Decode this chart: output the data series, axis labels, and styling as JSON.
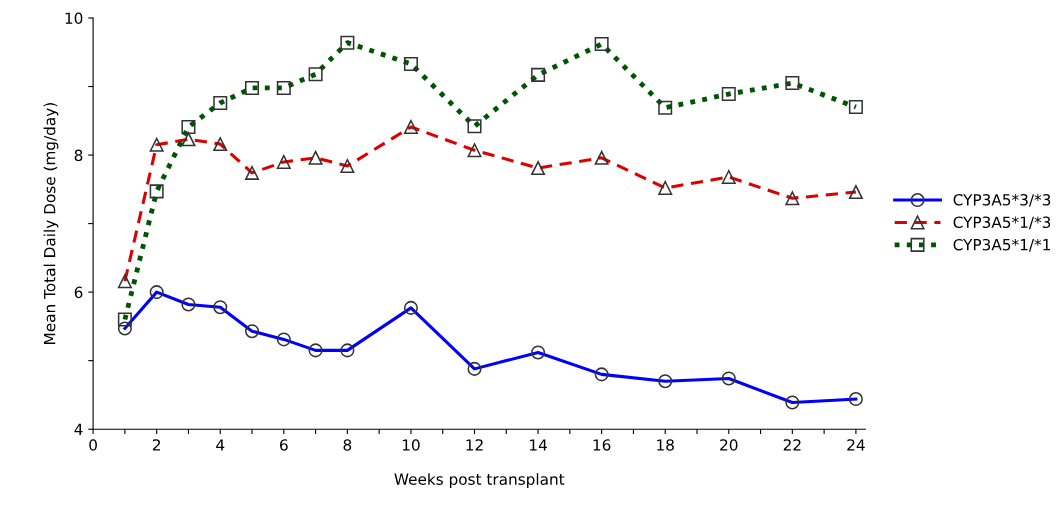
{
  "chart_data": {
    "type": "line",
    "xlabel": "Weeks post transplant",
    "ylabel": "Mean Total Daily Dose (mg/day)",
    "x": [
      1,
      2,
      3,
      4,
      5,
      6,
      7,
      8,
      10,
      12,
      14,
      16,
      18,
      20,
      22,
      24
    ],
    "series": [
      {
        "name": "CYP3A5*3/*3",
        "color": "#0000ff",
        "marker": "circle",
        "line_style": "solid",
        "values": [
          5.47,
          6.0,
          5.82,
          5.78,
          5.43,
          5.31,
          5.15,
          5.15,
          5.77,
          4.88,
          5.12,
          4.8,
          4.7,
          4.74,
          4.39,
          4.44
        ]
      },
      {
        "name": "CYP3A5*1/*3",
        "color": "#dd0000",
        "marker": "triangle",
        "line_style": "dashed",
        "values": [
          6.16,
          8.15,
          8.23,
          8.16,
          7.74,
          7.9,
          7.96,
          7.84,
          8.41,
          8.07,
          7.81,
          7.96,
          7.52,
          7.68,
          7.37,
          7.46
        ]
      },
      {
        "name": "CYP3A5*1/*1",
        "color": "#005500",
        "marker": "square",
        "line_style": "dotted",
        "values": [
          5.6,
          7.47,
          8.41,
          8.76,
          8.98,
          8.98,
          9.18,
          9.64,
          9.33,
          8.42,
          9.17,
          9.62,
          8.69,
          8.89,
          9.05,
          8.7
        ]
      }
    ],
    "xlim": [
      0,
      24.3
    ],
    "xticks": [
      0,
      {
        "value": 1,
        "label": null
      },
      2,
      {
        "value": 3,
        "label": null
      },
      4,
      {
        "value": 5,
        "label": null
      },
      6,
      {
        "value": 7,
        "label": null
      },
      8,
      {
        "value": 9,
        "label": null
      },
      10,
      {
        "value": 11,
        "label": null
      },
      12,
      {
        "value": 13,
        "label": null
      },
      14,
      {
        "value": 15,
        "label": null
      },
      16,
      {
        "value": 17,
        "label": null
      },
      18,
      {
        "value": 19,
        "label": null
      },
      20,
      {
        "value": 21,
        "label": null
      },
      22,
      {
        "value": 23,
        "label": null
      },
      24
    ],
    "ylim": [
      4,
      10
    ],
    "yticks": [
      4,
      {
        "value": 5,
        "label": null
      },
      6,
      {
        "value": 7,
        "label": null
      },
      8,
      {
        "value": 9,
        "label": null
      },
      10
    ],
    "grid": false,
    "legend": "right"
  }
}
